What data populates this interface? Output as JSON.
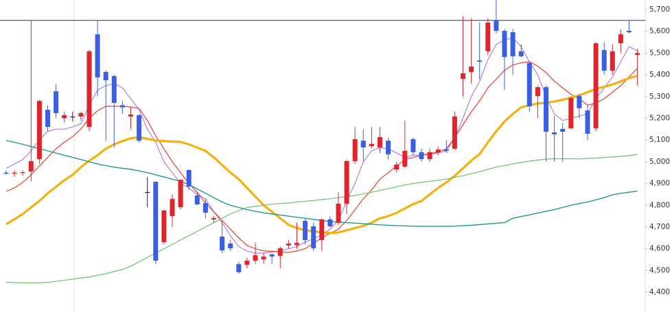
{
  "chart_data": {
    "type": "candlestick",
    "up_color": "#e0242b",
    "down_color": "#3a5fe3",
    "flat_color": "#222222",
    "reference_line": 5650,
    "ylim": [
      4309,
      5744
    ],
    "yticks": [
      {
        "value": 5700,
        "label": "5,700"
      },
      {
        "value": 5600,
        "label": "5,600"
      },
      {
        "value": 5500,
        "label": "5,500"
      },
      {
        "value": 5400,
        "label": "5,400"
      },
      {
        "value": 5300,
        "label": "5,300"
      },
      {
        "value": 5200,
        "label": "5,200"
      },
      {
        "value": 5100,
        "label": "5,100"
      },
      {
        "value": 5000,
        "label": "5,000"
      },
      {
        "value": 4900,
        "label": "4,900"
      },
      {
        "value": 4800,
        "label": "4,800"
      },
      {
        "value": 4700,
        "label": "4,700"
      },
      {
        "value": 4600,
        "label": "4,600"
      },
      {
        "value": 4500,
        "label": "4,500"
      },
      {
        "value": 4400,
        "label": "4,400"
      }
    ],
    "open": [
      4950,
      4945,
      4948,
      4955,
      5012,
      5239,
      5324,
      5200,
      5208,
      5208,
      5160,
      5586,
      5413,
      5394,
      5260,
      5208,
      5214,
      4861,
      4908,
      4630,
      4750,
      4791,
      4962,
      4845,
      4810,
      4735,
      4656,
      4624,
      4529,
      4526,
      4545,
      4551,
      4574,
      4567,
      4615,
      4617,
      4728,
      4703,
      4640,
      4735,
      4719,
      4807,
      5003,
      5097,
      5072,
      5066,
      5097,
      4965,
      4978,
      5104,
      5044,
      5012,
      5044,
      5056,
      5060,
      5381,
      5413,
      5466,
      5508,
      5650,
      5602,
      5596,
      5508,
      5454,
      5302,
      5343,
      5135,
      5151,
      5154,
      5302,
      5236,
      5154,
      5514,
      5419,
      5545,
      5602,
      5491
    ],
    "high": [
      4960,
      4960,
      4960,
      5650,
      5285,
      5260,
      5356,
      5230,
      5230,
      5230,
      5515,
      5650,
      5420,
      5400,
      5280,
      5250,
      5220,
      4930,
      4910,
      4780,
      4850,
      4920,
      4965,
      4860,
      4830,
      4750,
      4730,
      4640,
      4540,
      4560,
      4630,
      4580,
      4580,
      4610,
      4640,
      4720,
      4740,
      4720,
      4740,
      4750,
      4860,
      5010,
      5160,
      5150,
      5160,
      5160,
      5110,
      5000,
      5190,
      5110,
      5060,
      5060,
      5070,
      5100,
      5230,
      5670,
      5660,
      5640,
      5660,
      5744,
      5610,
      5610,
      5540,
      5460,
      5350,
      5350,
      5210,
      5180,
      5300,
      5310,
      5260,
      5550,
      5550,
      5540,
      5610,
      5650,
      5520
    ],
    "low": [
      4940,
      4930,
      4935,
      4910,
      4990,
      5140,
      5200,
      5180,
      5185,
      5190,
      5140,
      5302,
      5097,
      5066,
      5220,
      5150,
      5090,
      4790,
      4530,
      4620,
      4700,
      4780,
      4870,
      4800,
      4740,
      4720,
      4580,
      4590,
      4485,
      4510,
      4530,
      4530,
      4530,
      4510,
      4600,
      4600,
      4620,
      4590,
      4590,
      4700,
      4710,
      4760,
      4990,
      5000,
      5060,
      5040,
      5010,
      4950,
      4970,
      5030,
      5000,
      5000,
      5030,
      5040,
      5055,
      5300,
      5360,
      5380,
      5490,
      5590,
      5330,
      5400,
      5480,
      5230,
      5200,
      5000,
      5000,
      5000,
      5150,
      5200,
      5100,
      5140,
      5400,
      5400,
      5500,
      5590,
      5350
    ],
    "close": [
      4945,
      4950,
      4952,
      5003,
      5280,
      5160,
      5224,
      5214,
      5208,
      5224,
      5508,
      5388,
      5375,
      5271,
      5250,
      5217,
      5097,
      4861,
      4545,
      4776,
      4829,
      4917,
      4886,
      4804,
      4766,
      4741,
      4592,
      4602,
      4492,
      4545,
      4570,
      4564,
      4564,
      4602,
      4624,
      4627,
      4640,
      4602,
      4735,
      4703,
      4807,
      5003,
      5104,
      5066,
      5082,
      5113,
      5034,
      4987,
      5050,
      5044,
      5012,
      5044,
      5056,
      5050,
      5208,
      5407,
      5438,
      5460,
      5640,
      5602,
      5482,
      5485,
      5485,
      5255,
      5343,
      5138,
      5126,
      5138,
      5293,
      5246,
      5129,
      5545,
      5419,
      5508,
      5586,
      5596,
      5500
    ],
    "series": [
      {
        "color": "#b07ee0",
        "width": 1.2,
        "values": [
          4970,
          4990,
          5010,
          5050,
          5100,
          5140,
          5150,
          5150,
          5160,
          5175,
          5260,
          5330,
          5350,
          5360,
          5340,
          5290,
          5240,
          5150,
          5090,
          5000,
          4950,
          4900,
          4880,
          4850,
          4830,
          4770,
          4720,
          4660,
          4610,
          4590,
          4580,
          4580,
          4585,
          4590,
          4600,
          4610,
          4630,
          4645,
          4665,
          4690,
          4730,
          4820,
          4900,
          5000,
          5050,
          5065,
          5060,
          5040,
          5020,
          5030,
          5030,
          5035,
          5040,
          5050,
          5110,
          5200,
          5300,
          5370,
          5470,
          5540,
          5560,
          5570,
          5530,
          5460,
          5400,
          5300,
          5220,
          5190,
          5200,
          5210,
          5220,
          5290,
          5340,
          5390,
          5460,
          5530,
          5510
        ]
      },
      {
        "color": "#e8402f",
        "width": 1.2,
        "values": [
          4864,
          4880,
          4905,
          4940,
          4980,
          5020,
          5060,
          5090,
          5115,
          5150,
          5200,
          5235,
          5255,
          5255,
          5255,
          5252,
          5245,
          5190,
          5120,
          5060,
          5000,
          4950,
          4900,
          4860,
          4810,
          4770,
          4730,
          4690,
          4650,
          4615,
          4600,
          4590,
          4588,
          4585,
          4583,
          4590,
          4600,
          4625,
          4650,
          4670,
          4690,
          4730,
          4780,
          4830,
          4870,
          4920,
          4950,
          4980,
          5010,
          5020,
          5030,
          5038,
          5044,
          5060,
          5110,
          5170,
          5230,
          5280,
          5340,
          5380,
          5420,
          5445,
          5455,
          5460,
          5440,
          5410,
          5370,
          5340,
          5310,
          5290,
          5260,
          5270,
          5290,
          5320,
          5350,
          5390,
          5430
        ]
      },
      {
        "color": "#f5b00f",
        "width": 3.2,
        "values": [
          4713,
          4735,
          4760,
          4790,
          4820,
          4855,
          4885,
          4915,
          4940,
          4975,
          5005,
          5030,
          5060,
          5080,
          5095,
          5108,
          5113,
          5105,
          5098,
          5095,
          5093,
          5091,
          5080,
          5065,
          5050,
          5020,
          4985,
          4950,
          4920,
          4880,
          4840,
          4800,
          4770,
          4740,
          4710,
          4695,
          4685,
          4680,
          4675,
          4672,
          4675,
          4685,
          4695,
          4705,
          4720,
          4740,
          4750,
          4765,
          4785,
          4805,
          4820,
          4850,
          4880,
          4905,
          4935,
          4970,
          5005,
          5035,
          5090,
          5140,
          5185,
          5220,
          5250,
          5260,
          5268,
          5272,
          5277,
          5285,
          5295,
          5305,
          5320,
          5335,
          5345,
          5355,
          5370,
          5385,
          5395
        ]
      },
      {
        "color": "#6cbf6c",
        "width": 1.2,
        "values": [
          4446,
          4444,
          4443,
          4443,
          4443,
          4445,
          4450,
          4455,
          4460,
          4465,
          4470,
          4478,
          4485,
          4495,
          4505,
          4520,
          4540,
          4560,
          4580,
          4600,
          4620,
          4640,
          4660,
          4680,
          4700,
          4720,
          4740,
          4760,
          4775,
          4790,
          4795,
          4800,
          4805,
          4808,
          4810,
          4815,
          4818,
          4822,
          4826,
          4830,
          4835,
          4840,
          4845,
          4852,
          4860,
          4868,
          4876,
          4885,
          4893,
          4900,
          4905,
          4910,
          4915,
          4920,
          4928,
          4936,
          4945,
          4955,
          4965,
          4975,
          4983,
          4990,
          4997,
          5003,
          5008,
          5012,
          5014,
          5014,
          5014,
          5013,
          5015,
          5017,
          5020,
          5022,
          5025,
          5028,
          5034
        ]
      },
      {
        "color": "#1f9a8c",
        "width": 1.4,
        "values": [
          5097,
          5090,
          5080,
          5070,
          5060,
          5050,
          5040,
          5030,
          5020,
          5010,
          5000,
          4990,
          4982,
          4975,
          4970,
          4965,
          4958,
          4950,
          4940,
          4930,
          4920,
          4910,
          4895,
          4875,
          4855,
          4835,
          4815,
          4800,
          4790,
          4780,
          4772,
          4765,
          4760,
          4755,
          4750,
          4745,
          4740,
          4735,
          4730,
          4725,
          4722,
          4720,
          4718,
          4715,
          4713,
          4710,
          4708,
          4706,
          4705,
          4704,
          4703,
          4703,
          4703,
          4703,
          4704,
          4706,
          4708,
          4711,
          4714,
          4717,
          4720,
          4740,
          4748,
          4756,
          4764,
          4772,
          4780,
          4790,
          4800,
          4808,
          4815,
          4825,
          4835,
          4848,
          4855,
          4860,
          4865
        ]
      }
    ]
  }
}
